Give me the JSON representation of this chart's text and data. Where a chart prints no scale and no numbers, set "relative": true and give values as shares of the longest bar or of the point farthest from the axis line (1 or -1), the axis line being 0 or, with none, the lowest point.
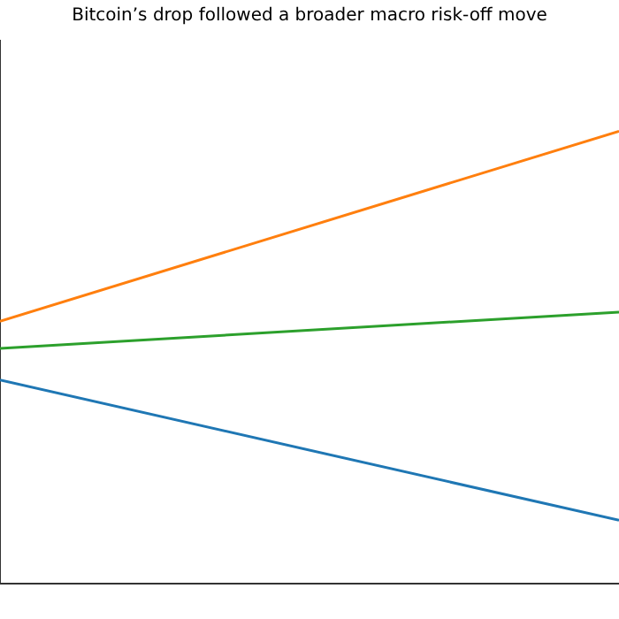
{
  "chart_data": {
    "type": "line",
    "title": "Bitcoin’s drop followed a broader macro risk-off move",
    "categories": [
      null,
      null
    ],
    "relative": true,
    "legend": false,
    "series": [
      {
        "color": "#1f77b4",
        "values": [
          0.45,
          0.14
        ]
      },
      {
        "color": "#ff7f0e",
        "values": [
          0.58,
          1
        ]
      },
      {
        "color": "#2ca02c",
        "values": [
          0.52,
          0.6
        ]
      }
    ]
  }
}
